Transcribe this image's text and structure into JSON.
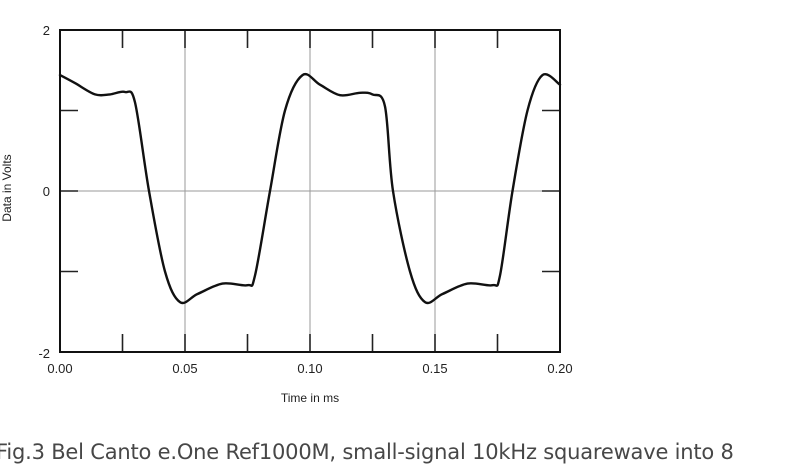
{
  "chart_data": {
    "type": "line",
    "title": "",
    "xlabel": "Time in ms",
    "ylabel": "Data in Volts",
    "xlim": [
      0.0,
      0.2
    ],
    "ylim": [
      -2,
      2
    ],
    "x_ticks": [
      0.0,
      0.05,
      0.1,
      0.15,
      0.2
    ],
    "x_tick_labels": [
      "0.00",
      "0.05",
      "0.10",
      "0.15",
      "0.20"
    ],
    "x_minor_ticks": [
      0.025,
      0.075,
      0.125,
      0.175
    ],
    "y_ticks": [
      -2,
      0,
      2
    ],
    "y_tick_labels": [
      "-2",
      "0",
      "2"
    ],
    "y_minor_ticks": [
      -1,
      1
    ],
    "grid": {
      "x": [
        0.05,
        0.1,
        0.15
      ],
      "y": [
        0
      ]
    },
    "legend": null,
    "series": [
      {
        "name": "10kHz squarewave",
        "color": "#111111",
        "x": [
          0.0,
          0.006,
          0.014,
          0.02,
          0.026,
          0.03,
          0.0356,
          0.042,
          0.048,
          0.055,
          0.065,
          0.075,
          0.078,
          0.084,
          0.09,
          0.097,
          0.104,
          0.112,
          0.12,
          0.125,
          0.13,
          0.1332,
          0.14,
          0.146,
          0.153,
          0.163,
          0.173,
          0.176,
          0.181,
          0.187,
          0.193,
          0.2
        ],
        "y": [
          1.44,
          1.34,
          1.2,
          1.2,
          1.23,
          1.1,
          0.0,
          -1.0,
          -1.38,
          -1.28,
          -1.15,
          -1.17,
          -1.05,
          0.0,
          1.0,
          1.44,
          1.32,
          1.19,
          1.22,
          1.2,
          1.05,
          0.0,
          -1.0,
          -1.38,
          -1.28,
          -1.15,
          -1.17,
          -1.05,
          0.0,
          1.0,
          1.44,
          1.32
        ]
      }
    ]
  },
  "caption": "Fig.3 Bel Canto e.One Ref1000M, small-signal 10kHz squarewave into 8"
}
